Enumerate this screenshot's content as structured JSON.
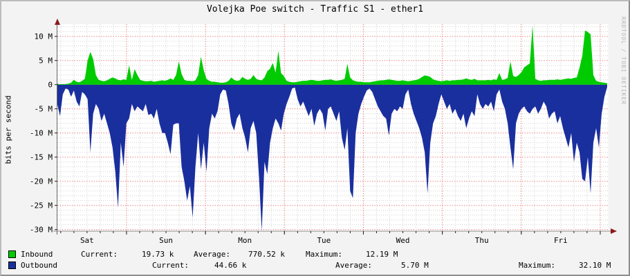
{
  "title": "Volejka Poe switch - Traffic S1 - ether1",
  "watermark": "RRDTOOL / TOBI OETIKER",
  "y_axis_label": "bits per second",
  "legend": {
    "inbound": {
      "label": "Inbound",
      "color": "#00cb00",
      "current_label": "Current:",
      "current": "19.73 k",
      "average_label": "Average:",
      "average": "770.52 k",
      "maximum_label": "Maximum:",
      "maximum": "12.19 M"
    },
    "outbound": {
      "label": "Outbound",
      "color": "#1a2f9e",
      "current_label": "Current:",
      "current": "44.66 k",
      "average_label": "Average:",
      "average": "5.70 M",
      "maximum_label": "Maximum:",
      "maximum": "32.10 M"
    }
  },
  "chart_data": {
    "type": "area",
    "title": "Volejka Poe switch - Traffic S1 - ether1",
    "ylabel": "bits per second",
    "xlabel": "",
    "categories": [
      "Sat",
      "Sun",
      "Mon",
      "Tue",
      "Wed",
      "Thu",
      "Fri"
    ],
    "y_ticks": [
      10,
      5,
      0,
      -5,
      -10,
      -15,
      -20,
      -25,
      -30
    ],
    "y_tick_labels": [
      "10 M",
      "5 M",
      "0",
      "-5 M",
      "-10 M",
      "-15 M",
      "-20 M",
      "-25 M",
      "-30 M"
    ],
    "ylim": [
      -30.3,
      12.5
    ],
    "x_minor_step_days": 0.166667,
    "x_major_step_days": 1,
    "grid": {
      "minor_color": "#cfcfcf",
      "major_color": "#ee8383",
      "zero_color": "#d24a4e",
      "on": true
    },
    "legend_position": "bottom",
    "t_start": 0.1225,
    "t_step": 0.035,
    "units": "Mbit/s (positive = Inbound, negative = Outbound)",
    "series": [
      {
        "name": "Inbound",
        "color": "#00cb00",
        "values": [
          0.2,
          0.1,
          0.1,
          0.15,
          0.2,
          0.4,
          1.0,
          0.6,
          0.5,
          0.8,
          1.2,
          5.0,
          6.8,
          5.3,
          2.0,
          1.0,
          0.8,
          0.7,
          0.9,
          1.2,
          1.5,
          1.3,
          1.0,
          0.9,
          1.1,
          1.0,
          4.0,
          1.0,
          3.2,
          2.0,
          1.0,
          0.8,
          0.7,
          0.7,
          0.8,
          0.6,
          0.7,
          0.8,
          0.9,
          0.8,
          1.0,
          1.3,
          1.0,
          2.0,
          4.8,
          2.2,
          1.0,
          0.8,
          0.8,
          0.7,
          0.9,
          2.0,
          5.8,
          3.0,
          1.2,
          0.8,
          0.6,
          0.6,
          0.5,
          0.4,
          0.4,
          0.5,
          0.8,
          1.5,
          1.0,
          0.8,
          0.9,
          1.6,
          1.2,
          1.0,
          1.2,
          2.0,
          1.2,
          1.0,
          0.9,
          1.5,
          2.8,
          3.3,
          4.5,
          2.5,
          7.0,
          2.4,
          1.8,
          0.8,
          0.6,
          0.5,
          0.5,
          0.6,
          0.7,
          0.8,
          0.8,
          0.9,
          1.0,
          0.9,
          0.8,
          0.8,
          0.9,
          1.0,
          1.0,
          1.1,
          0.9,
          0.8,
          0.9,
          1.0,
          1.2,
          4.3,
          1.5,
          0.9,
          0.7,
          0.6,
          0.6,
          0.5,
          0.5,
          0.5,
          0.6,
          0.7,
          0.8,
          0.9,
          0.9,
          1.0,
          1.1,
          1.0,
          0.9,
          0.8,
          0.8,
          0.9,
          0.8,
          0.7,
          0.8,
          0.9,
          1.0,
          1.2,
          1.6,
          1.9,
          1.8,
          1.6,
          1.1,
          0.9,
          0.8,
          0.7,
          0.8,
          0.9,
          0.8,
          0.9,
          0.9,
          1.0,
          1.0,
          1.1,
          1.3,
          1.1,
          1.0,
          1.2,
          0.9,
          0.9,
          0.9,
          0.9,
          1.0,
          0.9,
          1.1,
          1.0,
          2.4,
          1.0,
          1.1,
          1.4,
          4.8,
          1.8,
          1.6,
          2.0,
          2.6,
          3.6,
          4.0,
          4.4,
          12.2,
          1.2,
          0.9,
          0.8,
          0.9,
          0.9,
          1.0,
          1.0,
          1.0,
          1.1,
          1.0,
          1.1,
          1.2,
          1.3,
          1.2,
          1.4,
          1.5,
          3.5,
          6.0,
          11.2,
          10.9,
          10.4,
          2.0,
          0.8,
          0.6,
          0.5,
          0.4,
          0.3
        ]
      },
      {
        "name": "Outbound",
        "color": "#1a2f9e",
        "values": [
          -4,
          -6.5,
          -2,
          -0.8,
          -1,
          -2.5,
          -1.2,
          -3.5,
          -4.5,
          -1.5,
          -2,
          -3,
          -14,
          -6,
          -4,
          -5,
          -7.5,
          -6,
          -8,
          -10,
          -13,
          -18,
          -25.5,
          -12,
          -17,
          -8,
          -7,
          -4,
          -5.5,
          -4.5,
          -5,
          -5.5,
          -4,
          -6.3,
          -6,
          -7,
          -5,
          -8,
          -10,
          -10,
          -12,
          -14.4,
          -8.3,
          -8,
          -8,
          -17,
          -20,
          -24,
          -21,
          -27.5,
          -17,
          -10,
          -17.5,
          -12,
          -18,
          -9,
          -6,
          -7,
          -5.5,
          -2,
          -1,
          -1.2,
          -4,
          -8,
          -9.5,
          -7,
          -6,
          -9,
          -11,
          -14,
          -9,
          -7.5,
          -10,
          -19,
          -31,
          -16,
          -18.5,
          -12,
          -9,
          -7,
          -8,
          -9.5,
          -6,
          -4,
          -2.5,
          -0.8,
          -0.6,
          -3,
          -4.5,
          -3.5,
          -5,
          -6.5,
          -5,
          -8.5,
          -6,
          -5,
          -6,
          -9.5,
          -5,
          -4.5,
          -6,
          -7.5,
          -5.5,
          -11,
          -13.5,
          -9,
          -22,
          -23.5,
          -10,
          -6,
          -4,
          -2.5,
          -1.2,
          -0.8,
          -1.5,
          -3,
          -4.5,
          -5.5,
          -6.5,
          -7,
          -10.5,
          -6,
          -5,
          -5.5,
          -4.5,
          -5,
          -2,
          -1,
          -4,
          -6,
          -7.5,
          -9,
          -11,
          -14,
          -22.5,
          -12,
          -8,
          -6.5,
          -4,
          -2,
          -3.5,
          -5,
          -4,
          -6,
          -5,
          -6.5,
          -7.5,
          -6,
          -9,
          -7,
          -5.5,
          -6.5,
          -2,
          -4,
          -5,
          -4,
          -4.5,
          -3.5,
          -5.5,
          -2,
          -1,
          -3.5,
          -5,
          -8,
          -13,
          -17.5,
          -8,
          -6,
          -5,
          -4.5,
          -5.5,
          -6,
          -5,
          -4.5,
          -6,
          -5,
          -3.5,
          -4.5,
          -7,
          -6,
          -5.5,
          -8,
          -6.5,
          -9,
          -11,
          -13,
          -10,
          -16,
          -12,
          -14,
          -19.5,
          -20,
          -15,
          -22.5,
          -12,
          -9,
          -13,
          -6,
          -2.5,
          -0.5
        ]
      }
    ]
  }
}
